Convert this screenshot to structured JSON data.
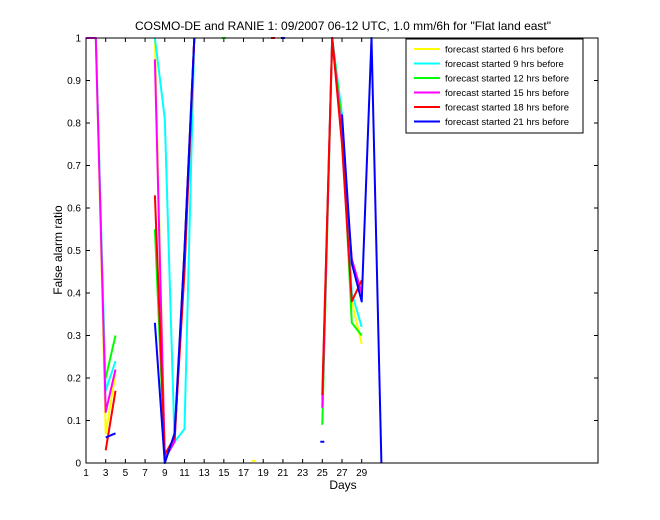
{
  "chart_data": {
    "type": "line",
    "title": "COSMO-DE and RANIE 1: 09/2007 06-12 UTC, 1.0 mm/6h for \"Flat land east\"",
    "xlabel": "Days",
    "ylabel": "False alarm ratio",
    "xlim": [
      1,
      53
    ],
    "ylim": [
      0,
      1
    ],
    "xticks": [
      1,
      3,
      5,
      7,
      9,
      11,
      13,
      15,
      17,
      19,
      21,
      23,
      25,
      27,
      29
    ],
    "yticks": [
      0,
      0.1,
      0.2,
      0.3,
      0.4,
      0.5,
      0.6,
      0.7,
      0.8,
      0.9,
      1
    ],
    "grid": false,
    "legend_position": "top-right",
    "series": [
      {
        "name": "forecast started 6 hrs before",
        "color": "#ffff00",
        "segments": [
          [
            [
              2,
              1
            ],
            [
              3,
              0.07
            ],
            [
              4,
              0.21
            ]
          ],
          [
            [
              8,
              1
            ],
            [
              9,
              0.01
            ],
            [
              10,
              0.05
            ],
            [
              11,
              0.5
            ],
            [
              12,
              1
            ]
          ],
          [
            [
              18,
              0.005
            ]
          ],
          [
            [
              25,
              0.15
            ],
            [
              26,
              1
            ],
            [
              27,
              0.79
            ],
            [
              28,
              0.38
            ],
            [
              29,
              0.28
            ]
          ]
        ]
      },
      {
        "name": "forecast started 9 hrs before",
        "color": "#00ffff",
        "segments": [
          [
            [
              2,
              1
            ],
            [
              3,
              0.17
            ],
            [
              4,
              0.24
            ]
          ],
          [
            [
              8,
              1
            ],
            [
              9,
              0.81
            ],
            [
              10,
              0.05
            ],
            [
              11,
              0.08
            ],
            [
              12,
              1
            ]
          ],
          [
            [
              25,
              0.15
            ],
            [
              26,
              1
            ],
            [
              27,
              0.82
            ],
            [
              28,
              0.4
            ],
            [
              29,
              0.32
            ]
          ]
        ]
      },
      {
        "name": "forecast started 12 hrs before",
        "color": "#00ff00",
        "segments": [
          [
            [
              3,
              0.2
            ],
            [
              4,
              0.3
            ]
          ],
          [
            [
              8,
              0.55
            ],
            [
              9,
              0.01
            ],
            [
              10,
              0.05
            ],
            [
              11,
              0.5
            ],
            [
              12,
              1
            ]
          ],
          [
            [
              15,
              1
            ]
          ],
          [
            [
              25,
              0.09
            ],
            [
              26,
              1
            ],
            [
              27,
              0.8
            ],
            [
              28,
              0.33
            ],
            [
              29,
              0.3
            ]
          ]
        ]
      },
      {
        "name": "forecast started 15 hrs before",
        "color": "#ff00ff",
        "segments": [
          [
            [
              1,
              1
            ],
            [
              2,
              1
            ],
            [
              3,
              0.12
            ],
            [
              4,
              0.22
            ]
          ],
          [
            [
              8,
              0.95
            ],
            [
              9,
              0.01
            ],
            [
              10,
              0.05
            ],
            [
              11,
              0.5
            ],
            [
              12,
              1
            ]
          ],
          [
            [
              25,
              0.13
            ],
            [
              26,
              1
            ],
            [
              27,
              0.77
            ],
            [
              28,
              0.48
            ],
            [
              29,
              0.4
            ]
          ]
        ]
      },
      {
        "name": "forecast started 18 hrs before",
        "color": "#ff0000",
        "segments": [
          [
            [
              3,
              0.03
            ],
            [
              4,
              0.17
            ]
          ],
          [
            [
              8,
              0.63
            ],
            [
              9,
              0.02
            ],
            [
              10,
              0.06
            ],
            [
              11,
              0.45
            ],
            [
              12,
              1
            ]
          ],
          [
            [
              20,
              1
            ]
          ],
          [
            [
              25,
              0.16
            ],
            [
              26,
              1
            ],
            [
              27,
              0.75
            ],
            [
              28,
              0.38
            ],
            [
              29,
              0.43
            ]
          ]
        ]
      },
      {
        "name": "forecast started 21 hrs before",
        "color": "#0000ff",
        "segments": [
          [
            [
              3,
              0.06
            ],
            [
              4,
              0.07
            ]
          ],
          [
            [
              8,
              0.33
            ],
            [
              9,
              0
            ],
            [
              10,
              0.07
            ],
            [
              11,
              0.5
            ],
            [
              12,
              1
            ]
          ],
          [
            [
              21,
              1
            ]
          ],
          [
            [
              25,
              0.05
            ]
          ],
          [
            [
              27,
              0.82
            ],
            [
              28,
              0.47
            ],
            [
              29,
              0.38
            ],
            [
              30,
              1
            ],
            [
              31,
              0
            ]
          ]
        ]
      }
    ]
  }
}
